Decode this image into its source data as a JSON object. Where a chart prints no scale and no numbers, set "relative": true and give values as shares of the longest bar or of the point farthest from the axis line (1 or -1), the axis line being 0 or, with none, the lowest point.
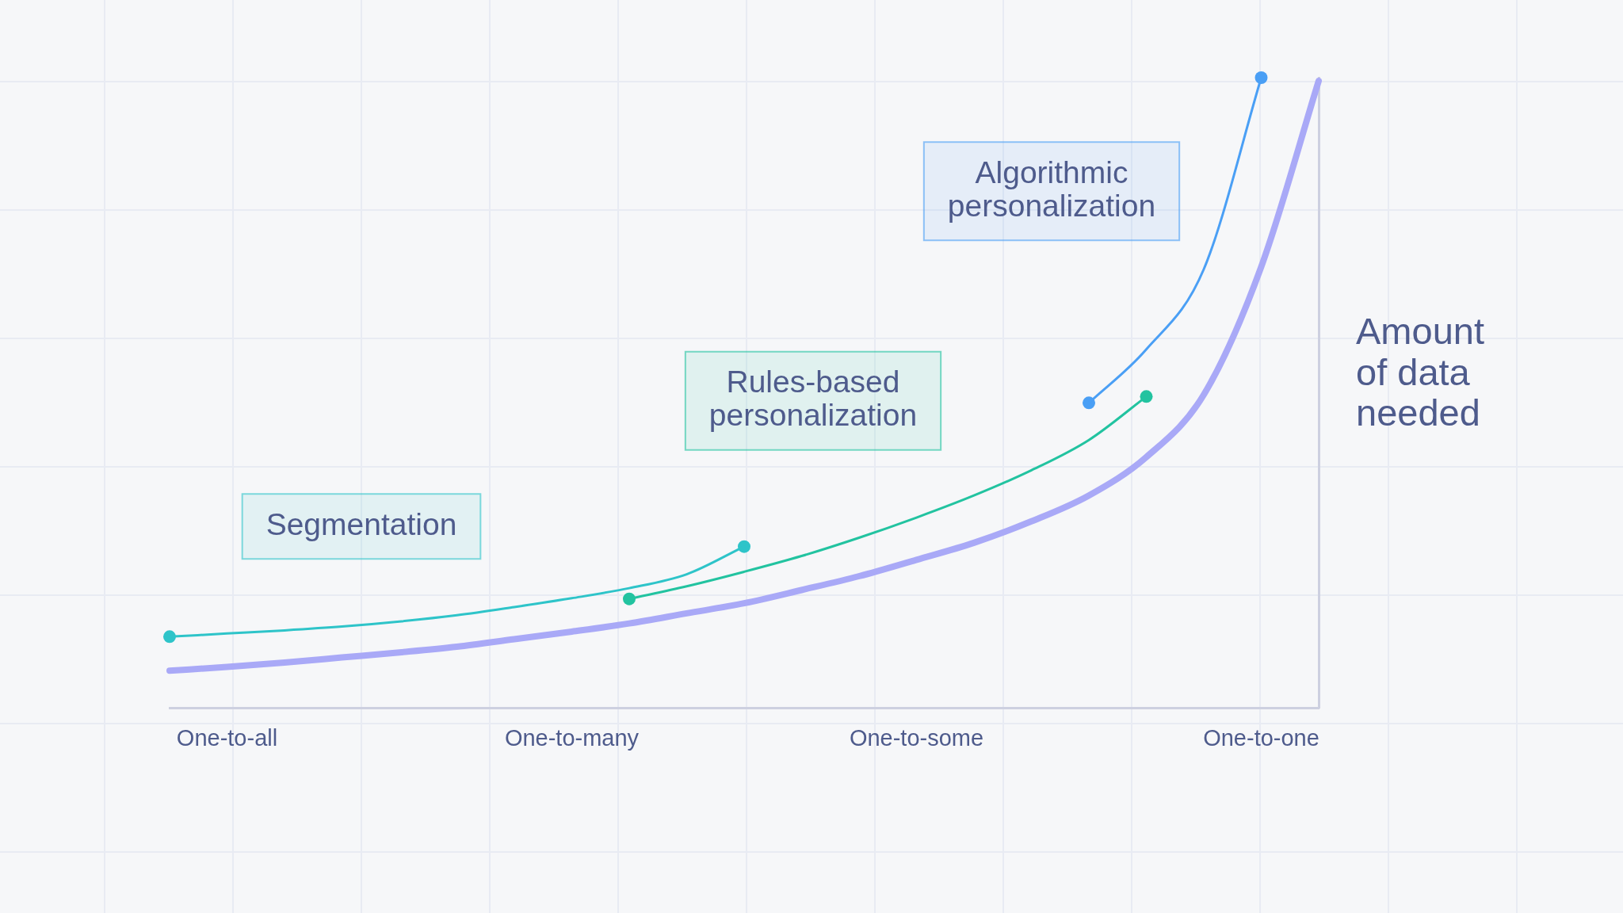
{
  "chart_data": {
    "type": "line",
    "relative": true,
    "ylabel": "Amount of data needed",
    "categories": [
      null,
      "One-to-all",
      null,
      null,
      null,
      null,
      null,
      "One-to-many",
      null,
      null,
      null,
      null,
      null,
      "One-to-some",
      null,
      null,
      null,
      null,
      null,
      "One-to-one",
      null
    ],
    "grid": false,
    "legend": false,
    "line_style": "solid",
    "series": [
      {
        "color": "#a9a9f7",
        "marker": "none",
        "values": [
          0.059,
          0.065,
          0.072,
          0.08,
          0.088,
          0.097,
          0.109,
          0.121,
          0.134,
          0.15,
          0.166,
          0.187,
          0.209,
          0.235,
          0.262,
          0.296,
          0.337,
          0.398,
          0.497,
          0.7,
          0.995
        ]
      },
      {
        "name": "Segmentation",
        "color": "#2ec4c9",
        "marker": "none",
        "values": [
          0.113,
          0.118,
          0.123,
          0.129,
          0.137,
          0.147,
          0.16,
          0.174,
          0.19,
          0.212,
          0.256,
          null,
          null,
          null,
          null,
          null,
          null,
          null,
          null,
          null,
          null
        ]
      },
      {
        "name": "Rules-based personalization",
        "color": "#22c3a0",
        "marker": "none",
        "values": [
          null,
          null,
          null,
          null,
          null,
          null,
          null,
          null,
          0.173,
          0.193,
          0.216,
          0.241,
          0.27,
          0.302,
          0.337,
          0.377,
          0.425,
          0.494,
          null,
          null,
          null
        ]
      },
      {
        "name": "Algorithmic personalization",
        "color": "#4a9ff5",
        "marker": "none",
        "values": [
          null,
          null,
          null,
          null,
          null,
          null,
          null,
          null,
          null,
          null,
          null,
          null,
          null,
          null,
          null,
          null,
          0.484,
          0.569,
          0.696,
          1.0,
          null
        ]
      },
      {
        "type": "scatter",
        "color": "#2ec4c9",
        "marker": "circle",
        "values": [
          0.113,
          null,
          null,
          null,
          null,
          null,
          null,
          null,
          null,
          null,
          0.256,
          null,
          null,
          null,
          null,
          null,
          null,
          null,
          null,
          null,
          null
        ]
      },
      {
        "type": "scatter",
        "color": "#22c3a0",
        "marker": "circle",
        "values": [
          null,
          null,
          null,
          null,
          null,
          null,
          null,
          null,
          0.173,
          null,
          null,
          null,
          null,
          null,
          null,
          null,
          null,
          0.494,
          null,
          null,
          null
        ]
      },
      {
        "type": "scatter",
        "color": "#4a9ff5",
        "marker": "circle",
        "values": [
          null,
          null,
          null,
          null,
          null,
          null,
          null,
          null,
          null,
          null,
          null,
          null,
          null,
          null,
          null,
          null,
          0.484,
          null,
          null,
          1.0,
          null
        ]
      }
    ]
  }
}
